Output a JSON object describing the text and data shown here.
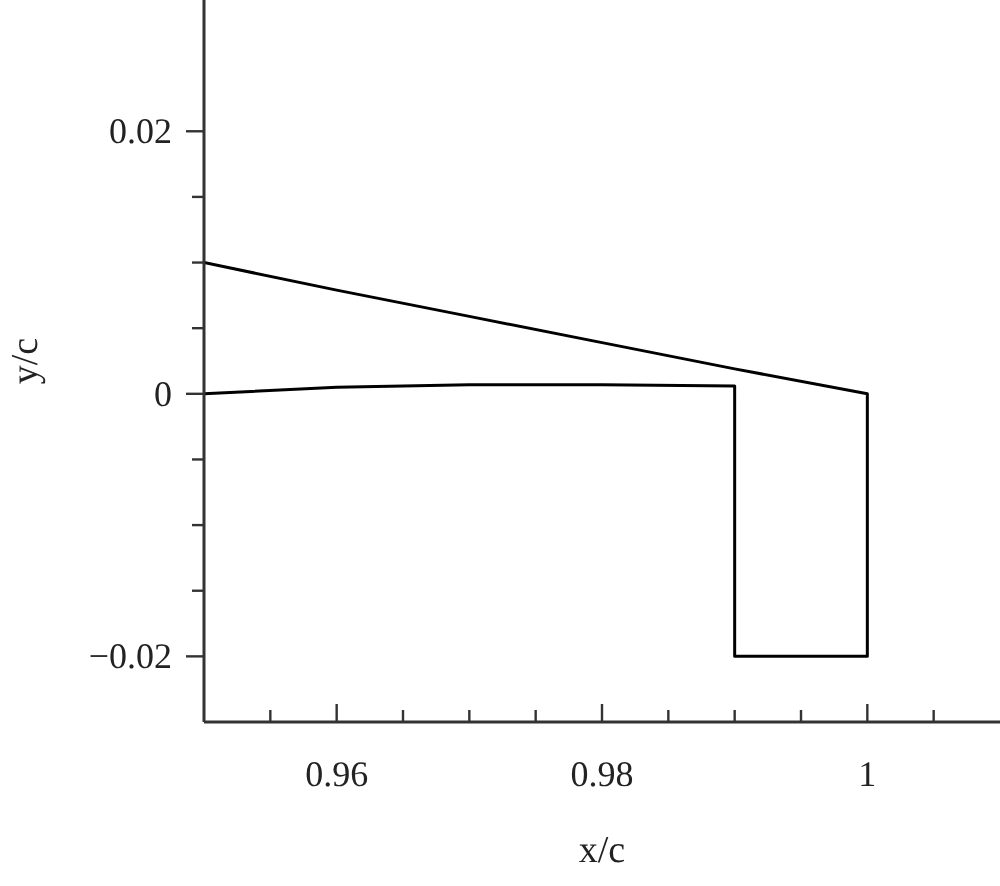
{
  "chart_data": {
    "type": "line",
    "xlabel": "x/c",
    "ylabel": "y/c",
    "series": [
      {
        "color": "#000000",
        "x": [
          0.95,
          0.96,
          0.97,
          0.98,
          0.99,
          1,
          1,
          0.99,
          0.99,
          0.98,
          0.97,
          0.96,
          0.95
        ],
        "values": [
          0.01,
          0.0079,
          0.0059,
          0.0039,
          0.0019,
          0,
          -0.02,
          -0.02,
          0.0006,
          0.0007,
          0.0007,
          0.0005,
          0
        ]
      }
    ],
    "xlim": [
      0.95,
      1.01
    ],
    "xticks": [
      {
        "value": 0.955,
        "label": null
      },
      0.96,
      {
        "value": 0.965,
        "label": null
      },
      {
        "value": 0.97,
        "label": null
      },
      {
        "value": 0.975,
        "label": null
      },
      0.98,
      {
        "value": 0.985,
        "label": null
      },
      {
        "value": 0.99,
        "label": null
      },
      {
        "value": 0.995,
        "label": null
      },
      1,
      {
        "value": 1.005,
        "label": null
      }
    ],
    "ylim": [
      -0.025,
      0.03
    ],
    "yticks": [
      -0.02,
      {
        "value": -0.015,
        "label": null
      },
      {
        "value": -0.01,
        "label": null
      },
      {
        "value": -0.005,
        "label": null
      },
      0,
      {
        "value": 0.005,
        "label": null
      },
      {
        "value": 0.01,
        "label": null
      },
      {
        "value": 0.015,
        "label": null
      },
      0.02
    ],
    "grid": false,
    "legend": false,
    "marker": "none",
    "line_style": "solid"
  }
}
